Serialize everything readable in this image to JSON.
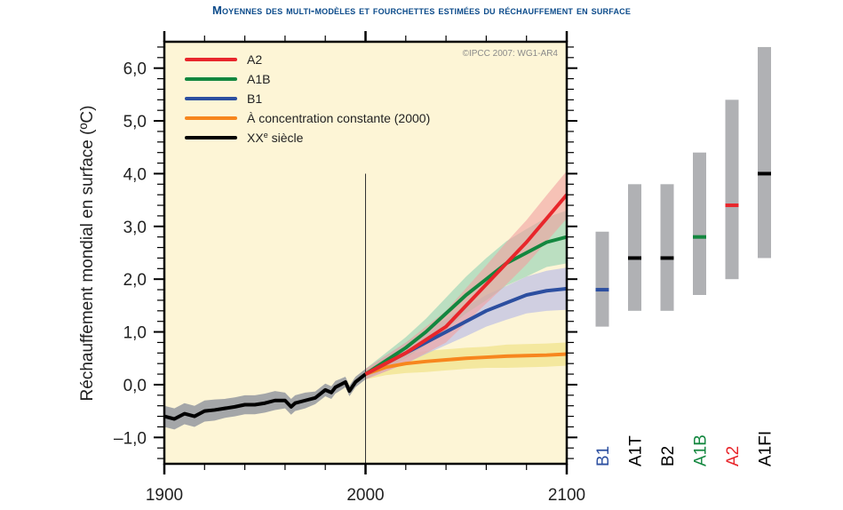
{
  "chart_data": {
    "type": "line",
    "title": "Moyennes des multi-modèles et fourchettes estimées du réchauffement en surface",
    "ylabel": "Réchauffement mondial en surface (ºC)",
    "xlabel": "",
    "xlim": [
      1900,
      2100
    ],
    "ylim": [
      -1.5,
      6.5
    ],
    "x_ticks": [
      "1900",
      "2000",
      "2100"
    ],
    "y_ticks": [
      {
        "v": -1.0,
        "label": "–1,0"
      },
      {
        "v": 0.0,
        "label": "0,0"
      },
      {
        "v": 1.0,
        "label": "1,0"
      },
      {
        "v": 2.0,
        "label": "2,0"
      },
      {
        "v": 3.0,
        "label": "3,0"
      },
      {
        "v": 4.0,
        "label": "4,0"
      },
      {
        "v": 5.0,
        "label": "5,0"
      },
      {
        "v": 6.0,
        "label": "6,0"
      }
    ],
    "copyright": "©IPCC  2007: WG1-AR4",
    "legend_position": "top-left",
    "vertical_marker_year": 2000,
    "series": [
      {
        "name": "A2",
        "color": "#e8262b",
        "band_color": "#f2a0a0",
        "x": [
          2000,
          2010,
          2020,
          2030,
          2040,
          2050,
          2060,
          2070,
          2080,
          2090,
          2100
        ],
        "y": [
          0.2,
          0.4,
          0.6,
          0.85,
          1.1,
          1.5,
          1.9,
          2.3,
          2.7,
          3.15,
          3.6
        ],
        "spread": [
          0.1,
          0.15,
          0.2,
          0.25,
          0.3,
          0.33,
          0.36,
          0.4,
          0.42,
          0.44,
          0.45
        ]
      },
      {
        "name": "A1B",
        "color": "#13873f",
        "band_color": "#8fd1b2",
        "x": [
          2000,
          2010,
          2020,
          2030,
          2040,
          2050,
          2060,
          2070,
          2080,
          2090,
          2100
        ],
        "y": [
          0.2,
          0.45,
          0.7,
          1.0,
          1.35,
          1.7,
          2.0,
          2.3,
          2.5,
          2.7,
          2.8
        ],
        "spread": [
          0.1,
          0.15,
          0.2,
          0.25,
          0.3,
          0.35,
          0.4,
          0.42,
          0.45,
          0.47,
          0.5
        ]
      },
      {
        "name": "B1",
        "color": "#2c4fa0",
        "band_color": "#b3b6e8",
        "x": [
          2000,
          2010,
          2020,
          2030,
          2040,
          2050,
          2060,
          2070,
          2080,
          2090,
          2100
        ],
        "y": [
          0.2,
          0.4,
          0.6,
          0.8,
          1.0,
          1.2,
          1.4,
          1.55,
          1.7,
          1.78,
          1.82
        ],
        "spread": [
          0.1,
          0.15,
          0.2,
          0.22,
          0.25,
          0.28,
          0.3,
          0.32,
          0.35,
          0.38,
          0.4
        ]
      },
      {
        "name": "À concentration constante (2000)",
        "color": "#f7861e",
        "band_color": "#eee07a",
        "x": [
          2000,
          2010,
          2020,
          2030,
          2040,
          2050,
          2060,
          2070,
          2080,
          2090,
          2100
        ],
        "y": [
          0.2,
          0.33,
          0.4,
          0.44,
          0.47,
          0.5,
          0.52,
          0.54,
          0.55,
          0.56,
          0.58
        ],
        "spread": [
          0.1,
          0.15,
          0.18,
          0.2,
          0.2,
          0.2,
          0.2,
          0.22,
          0.22,
          0.22,
          0.22
        ]
      },
      {
        "name": "XXe siècle",
        "color": "#000000",
        "band_color": "#a4a6a8",
        "x": [
          1900,
          1905,
          1910,
          1915,
          1920,
          1925,
          1930,
          1935,
          1940,
          1945,
          1950,
          1955,
          1960,
          1963,
          1965,
          1970,
          1975,
          1980,
          1983,
          1985,
          1990,
          1992,
          1995,
          2000
        ],
        "y": [
          -0.6,
          -0.65,
          -0.55,
          -0.6,
          -0.5,
          -0.48,
          -0.45,
          -0.42,
          -0.38,
          -0.38,
          -0.35,
          -0.3,
          -0.3,
          -0.42,
          -0.35,
          -0.3,
          -0.25,
          -0.1,
          -0.15,
          -0.05,
          0.05,
          -0.12,
          0.05,
          0.2
        ],
        "spread": [
          0.2,
          0.2,
          0.2,
          0.2,
          0.2,
          0.2,
          0.18,
          0.18,
          0.18,
          0.18,
          0.18,
          0.18,
          0.15,
          0.15,
          0.15,
          0.15,
          0.12,
          0.12,
          0.12,
          0.12,
          0.1,
          0.1,
          0.1,
          0.1
        ]
      }
    ],
    "legend": [
      {
        "label": "A2",
        "color": "#e8262b"
      },
      {
        "label": "A1B",
        "color": "#13873f"
      },
      {
        "label": "B1",
        "color": "#2c4fa0"
      },
      {
        "label": "À concentration constante (2000)",
        "color": "#f7861e"
      },
      {
        "label": "XXe siècle",
        "color": "#000000"
      }
    ],
    "scenario_ranges": [
      {
        "label": "B1",
        "low": 1.1,
        "best": 1.8,
        "high": 2.9,
        "color": "#2c4fa0"
      },
      {
        "label": "A1T",
        "low": 1.4,
        "best": 2.4,
        "high": 3.8,
        "color": "#000000"
      },
      {
        "label": "B2",
        "low": 1.4,
        "best": 2.4,
        "high": 3.8,
        "color": "#000000"
      },
      {
        "label": "A1B",
        "low": 1.7,
        "best": 2.8,
        "high": 4.4,
        "color": "#13873f"
      },
      {
        "label": "A2",
        "low": 2.0,
        "best": 3.4,
        "high": 5.4,
        "color": "#e8262b"
      },
      {
        "label": "A1FI",
        "low": 2.4,
        "best": 4.0,
        "high": 6.4,
        "color": "#000000"
      }
    ]
  }
}
